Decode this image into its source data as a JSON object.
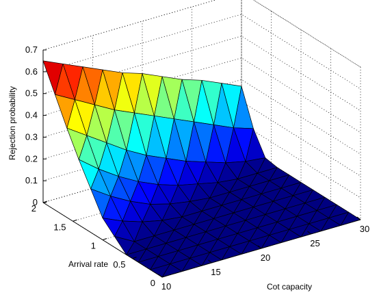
{
  "chart_data": {
    "type": "surface",
    "title": "",
    "xlabel": "Cot capacity",
    "ylabel": "Arrival rate",
    "zlabel": "Rejection probability",
    "xlim": [
      10,
      30
    ],
    "ylim": [
      0,
      2
    ],
    "zlim": [
      0,
      0.7
    ],
    "x_ticks": [
      "10",
      "15",
      "20",
      "25",
      "30"
    ],
    "y_ticks": [
      "0",
      "0.5",
      "1",
      "1.5",
      "2"
    ],
    "z_ticks": [
      "0",
      "0.1",
      "0.2",
      "0.3",
      "0.4",
      "0.5",
      "0.6",
      "0.7"
    ],
    "grid": true,
    "colormap": "jet",
    "x": [
      10,
      12,
      14,
      16,
      18,
      20,
      22,
      24,
      26,
      28,
      30
    ],
    "y": [
      0,
      0.2,
      0.4,
      0.6,
      0.8,
      1.0,
      1.2,
      1.4,
      1.6,
      1.8,
      2.0
    ],
    "z": [
      [
        0.0,
        0.0,
        0.0,
        0.0,
        0.0,
        0.0,
        0.0,
        0.0,
        0.0,
        0.0,
        0.0
      ],
      [
        0.0,
        0.0,
        0.0,
        0.0,
        0.0,
        0.0,
        0.0,
        0.0,
        0.0,
        0.0,
        0.0
      ],
      [
        0.0,
        0.0,
        0.0,
        0.0,
        0.0,
        0.0,
        0.0,
        0.0,
        0.0,
        0.0,
        0.0
      ],
      [
        0.0,
        0.0,
        0.0,
        0.0,
        0.0,
        0.0,
        0.0,
        0.0,
        0.0,
        0.0,
        0.0
      ],
      [
        0.05,
        0.0,
        0.0,
        0.0,
        0.0,
        0.0,
        0.0,
        0.0,
        0.0,
        0.0,
        0.0
      ],
      [
        0.1,
        0.06,
        0.03,
        0.01,
        0.0,
        0.0,
        0.0,
        0.0,
        0.0,
        0.0,
        0.0
      ],
      [
        0.2,
        0.14,
        0.09,
        0.05,
        0.025,
        0.01,
        0.0,
        0.0,
        0.0,
        0.0,
        0.0
      ],
      [
        0.3,
        0.23,
        0.17,
        0.12,
        0.08,
        0.05,
        0.03,
        0.01,
        0.0,
        0.0,
        0.0
      ],
      [
        0.41,
        0.35,
        0.29,
        0.23,
        0.18,
        0.14,
        0.1,
        0.07,
        0.04,
        0.02,
        0.01
      ],
      [
        0.53,
        0.48,
        0.43,
        0.38,
        0.34,
        0.3,
        0.26,
        0.22,
        0.18,
        0.14,
        0.11
      ],
      [
        0.65,
        0.61,
        0.57,
        0.53,
        0.49,
        0.46,
        0.42,
        0.38,
        0.35,
        0.31,
        0.27
      ]
    ]
  }
}
